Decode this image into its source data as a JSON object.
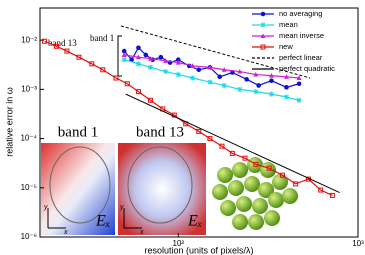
{
  "chart_data": {
    "type": "line",
    "x_label": "resolution (units of pixels/λ)",
    "y_label": "relative error in ω",
    "log_x": true,
    "log_y": true,
    "xlim": [
      17,
      1000
    ],
    "xticks": [
      {
        "value": 100,
        "label": "10²"
      },
      {
        "value": 1000,
        "label": "10³"
      }
    ],
    "ylim": [
      1e-06,
      0.045
    ],
    "yticks": [
      {
        "value": 1e-06,
        "label": "10⁻⁶"
      },
      {
        "value": 1e-05,
        "label": "10⁻⁵"
      },
      {
        "value": 0.0001,
        "label": "10⁻⁴"
      },
      {
        "value": 0.001,
        "label": "10⁻³"
      },
      {
        "value": 0.01,
        "label": "10⁻²"
      }
    ],
    "legend": "upper right",
    "series": [
      {
        "name": "no averaging",
        "color": "#1010d0",
        "marker": "circle",
        "dash": false,
        "x": [
          50,
          55,
          60,
          66,
          72,
          80,
          90,
          100,
          115,
          130,
          150,
          170,
          200,
          240,
          280,
          330,
          400,
          470
        ],
        "values": [
          0.006,
          0.004,
          0.007,
          0.005,
          0.004,
          0.0045,
          0.0035,
          0.004,
          0.003,
          0.0025,
          0.0028,
          0.0018,
          0.0022,
          0.0016,
          0.0012,
          0.0015,
          0.0011,
          0.0013
        ]
      },
      {
        "name": "mean",
        "color": "#20d8e8",
        "marker": "star",
        "dash": false,
        "x": [
          50,
          60,
          70,
          85,
          100,
          120,
          150,
          180,
          220,
          270,
          330,
          400,
          470
        ],
        "values": [
          0.004,
          0.0033,
          0.0028,
          0.0023,
          0.002,
          0.0017,
          0.0014,
          0.0012,
          0.001,
          0.0009,
          0.0008,
          0.0007,
          0.0006
        ]
      },
      {
        "name": "mean inverse",
        "color": "#d020d0",
        "marker": "triangle",
        "dash": false,
        "x": [
          50,
          60,
          70,
          85,
          100,
          120,
          150,
          180,
          220,
          270,
          330,
          400,
          470
        ],
        "values": [
          0.005,
          0.0045,
          0.0042,
          0.0038,
          0.0035,
          0.003,
          0.0028,
          0.0025,
          0.0023,
          0.002,
          0.0019,
          0.0018,
          0.0017
        ]
      },
      {
        "name": "new",
        "color": "#e01010",
        "marker": "square",
        "dash": false,
        "x": [
          18,
          21,
          24,
          28,
          33,
          38,
          45,
          52,
          60,
          70,
          82,
          95,
          110,
          130,
          150,
          175,
          200,
          235,
          270,
          320,
          380,
          450,
          530,
          620,
          720
        ],
        "values": [
          0.0095,
          0.0075,
          0.006,
          0.0045,
          0.0033,
          0.0025,
          0.0017,
          0.0013,
          0.0009,
          0.0006,
          0.0004,
          0.0003,
          0.0002,
          0.00014,
          0.0001,
          7e-05,
          5e-05,
          4e-05,
          3e-05,
          2.5e-05,
          1.8e-05,
          1.2e-05,
          1.5e-05,
          9e-06,
          7e-06
        ]
      },
      {
        "name": "perfect linear",
        "color": "#000000",
        "marker": "none",
        "dash": true,
        "x": [
          48,
          541
        ],
        "values": [
          0.0194,
          0.0017
        ]
      },
      {
        "name": "perfect quadratic",
        "color": "#000000",
        "marker": "none",
        "dash": false,
        "x": [
          51,
          790
        ],
        "values": [
          0.0008,
          8e-06
        ]
      }
    ],
    "annotations": [
      "band 13",
      "band 1"
    ],
    "inset_titles": [
      "band 1",
      "band 13"
    ],
    "field_labels": [
      "Eₓ",
      "Eₓ"
    ],
    "inset_axis_labels": [
      "y",
      "x",
      "y",
      "x"
    ]
  }
}
